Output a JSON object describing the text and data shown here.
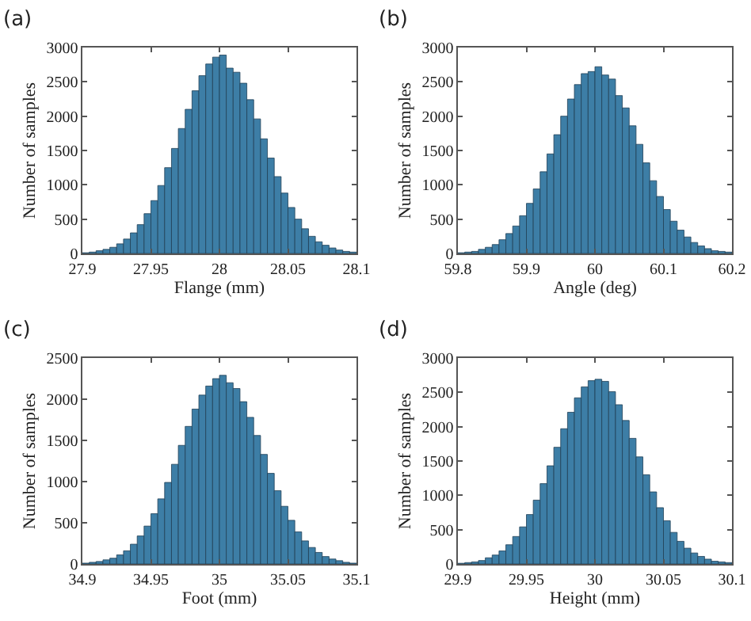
{
  "chart_data": [
    {
      "type": "histogram",
      "xlabel": "Flange (mm)",
      "ylabel": "Number of samples",
      "annotations": [
        "(a)"
      ],
      "color": "#3d7ea6",
      "grid": false,
      "legend": false,
      "bins": [
        27.9,
        27.905,
        27.91,
        27.915,
        27.92,
        27.925,
        27.93,
        27.935,
        27.94,
        27.945,
        27.95,
        27.955,
        27.96,
        27.965,
        27.97,
        27.975,
        27.98,
        27.985,
        27.99,
        27.995,
        28,
        28.005,
        28.01,
        28.015,
        28.02,
        28.025,
        28.03,
        28.035,
        28.04,
        28.045,
        28.05,
        28.055,
        28.06,
        28.065,
        28.07,
        28.075,
        28.08,
        28.085,
        28.09,
        28.095,
        28.1
      ],
      "values": [
        10,
        20,
        40,
        60,
        90,
        140,
        210,
        300,
        420,
        580,
        770,
        990,
        1250,
        1530,
        1820,
        2100,
        2370,
        2590,
        2760,
        2860,
        2890,
        2700,
        2640,
        2480,
        2240,
        1960,
        1670,
        1390,
        1120,
        880,
        670,
        500,
        360,
        250,
        170,
        120,
        80,
        50,
        30,
        20
      ],
      "xlim": [
        27.9,
        28.1
      ],
      "xticks": [
        27.9,
        27.95,
        28,
        28.05,
        28.1
      ],
      "ylim": [
        0,
        3000
      ],
      "yticks": [
        0,
        500,
        1000,
        1500,
        2000,
        2500,
        3000
      ]
    },
    {
      "type": "histogram",
      "xlabel": "Angle (deg)",
      "ylabel": "Number of samples",
      "annotations": [
        "(b)"
      ],
      "color": "#3d7ea6",
      "grid": false,
      "legend": false,
      "bins": [
        59.8,
        59.81,
        59.82,
        59.83,
        59.84,
        59.85,
        59.86,
        59.87,
        59.88,
        59.89,
        59.9,
        59.91,
        59.92,
        59.93,
        59.94,
        59.95,
        59.96,
        59.97,
        59.98,
        59.99,
        60,
        60.01,
        60.02,
        60.03,
        60.04,
        60.05,
        60.06,
        60.07,
        60.08,
        60.09,
        60.1,
        60.11,
        60.12,
        60.13,
        60.14,
        60.15,
        60.16,
        60.17,
        60.18,
        60.19,
        60.2
      ],
      "values": [
        10,
        20,
        30,
        60,
        90,
        130,
        200,
        290,
        400,
        550,
        730,
        940,
        1190,
        1450,
        1730,
        2000,
        2250,
        2460,
        2620,
        2650,
        2720,
        2600,
        2540,
        2300,
        2120,
        1860,
        1590,
        1320,
        1060,
        830,
        640,
        470,
        340,
        240,
        160,
        110,
        70,
        40,
        30,
        20
      ],
      "xlim": [
        59.8,
        60.2
      ],
      "xticks": [
        59.8,
        59.9,
        60,
        60.1,
        60.2
      ],
      "ylim": [
        0,
        3000
      ],
      "yticks": [
        0,
        500,
        1000,
        1500,
        2000,
        2500,
        3000
      ]
    },
    {
      "type": "histogram",
      "xlabel": "Foot (mm)",
      "ylabel": "Number of samples",
      "annotations": [
        "(c)"
      ],
      "color": "#3d7ea6",
      "grid": false,
      "legend": false,
      "bins": [
        34.9,
        34.905,
        34.91,
        34.915,
        34.92,
        34.925,
        34.93,
        34.935,
        34.94,
        34.945,
        34.95,
        34.955,
        34.96,
        34.965,
        34.97,
        34.975,
        34.98,
        34.985,
        34.99,
        34.995,
        35,
        35.005,
        35.01,
        35.015,
        35.02,
        35.025,
        35.03,
        35.035,
        35.04,
        35.045,
        35.05,
        35.055,
        35.06,
        35.065,
        35.07,
        35.075,
        35.08,
        35.085,
        35.09,
        35.095,
        35.1
      ],
      "values": [
        10,
        20,
        30,
        50,
        70,
        110,
        160,
        240,
        340,
        460,
        610,
        790,
        990,
        1210,
        1440,
        1670,
        1880,
        2050,
        2160,
        2250,
        2290,
        2200,
        2130,
        1970,
        1780,
        1560,
        1330,
        1100,
        890,
        700,
        530,
        390,
        280,
        200,
        140,
        90,
        60,
        40,
        20,
        10
      ],
      "xlim": [
        34.9,
        35.1
      ],
      "xticks": [
        34.9,
        34.95,
        35,
        35.05,
        35.1
      ],
      "ylim": [
        0,
        2500
      ],
      "yticks": [
        0,
        500,
        1000,
        1500,
        2000,
        2500
      ]
    },
    {
      "type": "histogram",
      "xlabel": "Height (mm)",
      "ylabel": "Number of samples",
      "annotations": [
        "(d)"
      ],
      "color": "#3d7ea6",
      "grid": false,
      "legend": false,
      "bins": [
        29.9,
        29.905,
        29.91,
        29.915,
        29.92,
        29.925,
        29.93,
        29.935,
        29.94,
        29.945,
        29.95,
        29.955,
        29.96,
        29.965,
        29.97,
        29.975,
        29.98,
        29.985,
        29.99,
        29.995,
        30,
        30.005,
        30.01,
        30.015,
        30.02,
        30.025,
        30.03,
        30.035,
        30.04,
        30.045,
        30.05,
        30.055,
        30.06,
        30.065,
        30.07,
        30.075,
        30.08,
        30.085,
        30.09,
        30.095,
        30.1
      ],
      "values": [
        10,
        20,
        30,
        50,
        90,
        130,
        190,
        280,
        400,
        540,
        720,
        930,
        1170,
        1430,
        1700,
        1970,
        2210,
        2420,
        2580,
        2670,
        2690,
        2660,
        2510,
        2320,
        2090,
        1830,
        1560,
        1300,
        1050,
        820,
        630,
        460,
        330,
        230,
        160,
        110,
        70,
        40,
        30,
        20
      ],
      "xlim": [
        29.9,
        30.1
      ],
      "xticks": [
        29.9,
        29.95,
        30,
        30.05,
        30.1
      ],
      "ylim": [
        0,
        3000
      ],
      "yticks": [
        0,
        500,
        1000,
        1500,
        2000,
        2500,
        3000
      ]
    }
  ]
}
